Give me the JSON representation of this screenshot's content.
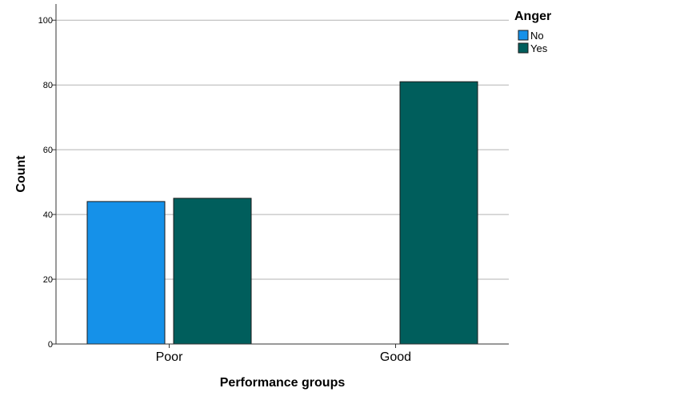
{
  "chart_data": {
    "type": "bar",
    "title": "",
    "xlabel": "Performance groups",
    "ylabel": "Count",
    "categories": [
      "Poor",
      "Good"
    ],
    "series": [
      {
        "name": "No",
        "values": [
          44,
          0
        ],
        "color": "#1591e9"
      },
      {
        "name": "Yes",
        "values": [
          45,
          81
        ],
        "color": "#005e5c"
      }
    ],
    "ylim": [
      0,
      105
    ],
    "yticks": [
      0,
      20,
      40,
      60,
      80,
      100
    ],
    "grid": true,
    "legend": {
      "title": "Anger",
      "position": "top-right"
    }
  }
}
